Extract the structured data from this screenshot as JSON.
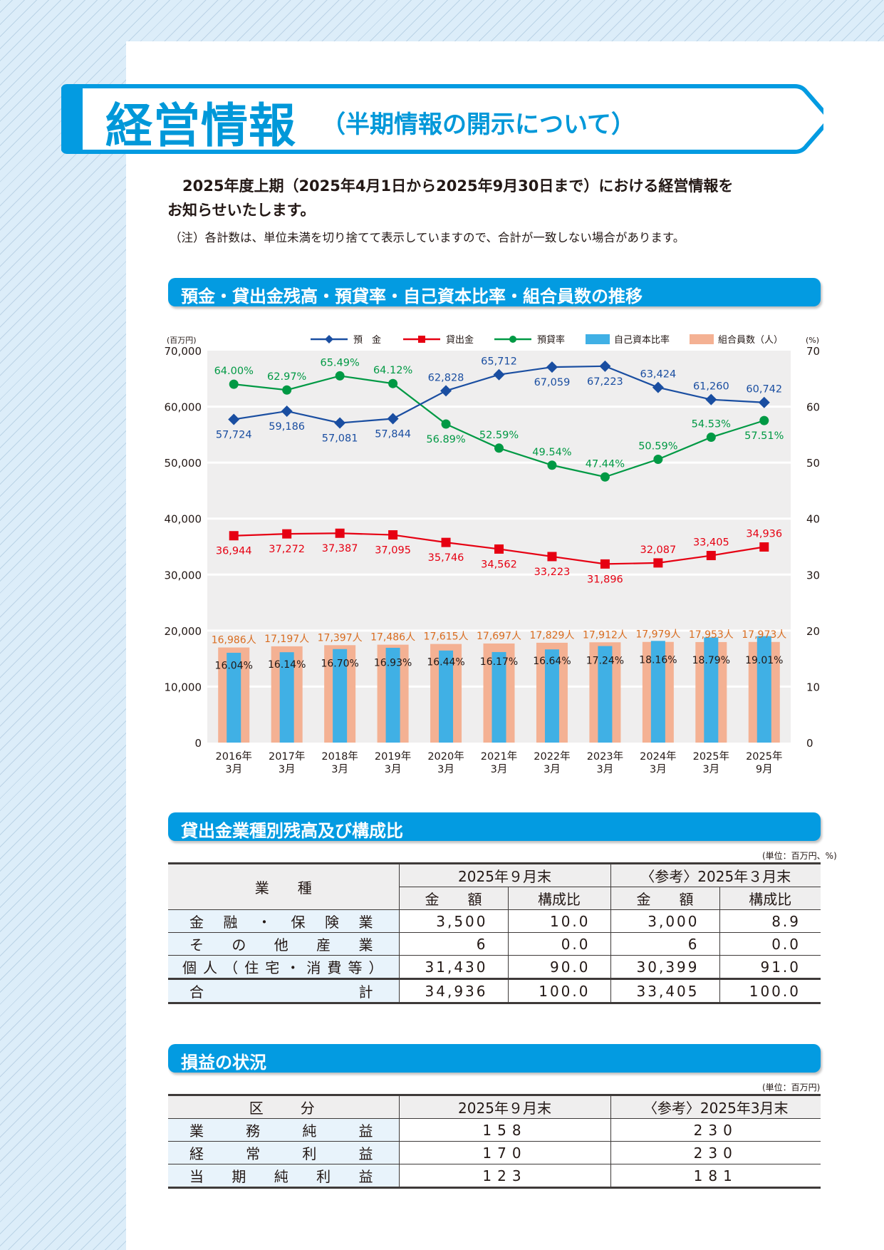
{
  "header": {
    "title": "経営情報",
    "subtitle": "（半期情報の開示について）"
  },
  "intro": {
    "line1": "2025年度上期（2025年4月1日から2025年9月30日まで）における経営情報を",
    "line2": "お知らせいたします。",
    "note": "（注）各計数は、単位未満を切り捨てて表示していますので、合計が一致しない場合があります。"
  },
  "colors": {
    "accent": "#039be1",
    "deposit": "#1a4ea1",
    "loan": "#e60012",
    "ratio": "#009944",
    "capital_ratio": "#40b0e5",
    "members": "#f4b193",
    "members_label": "#d96c1f",
    "plot_bg": "#efeeee"
  },
  "sections": {
    "chart": "預金・貸出金残高・預貸率・自己資本比率・組合員数の推移",
    "loans": "貸出金業種別残高及び構成比",
    "pl": "損益の状況"
  },
  "chart_data": {
    "type": "bar+line",
    "title": "預金・貸出金残高・預貸率・自己資本比率・組合員数の推移",
    "categories": [
      [
        "2016年",
        "3月"
      ],
      [
        "2017年",
        "3月"
      ],
      [
        "2018年",
        "3月"
      ],
      [
        "2019年",
        "3月"
      ],
      [
        "2020年",
        "3月"
      ],
      [
        "2021年",
        "3月"
      ],
      [
        "2022年",
        "3月"
      ],
      [
        "2023年",
        "3月"
      ],
      [
        "2024年",
        "3月"
      ],
      [
        "2025年",
        "3月"
      ],
      [
        "2025年",
        "9月"
      ]
    ],
    "left_axis": {
      "label": "(百万円)",
      "min": 0,
      "max": 70000,
      "ticks": [
        0,
        10000,
        20000,
        30000,
        40000,
        50000,
        60000,
        70000
      ],
      "tick_labels": [
        "0",
        "10,000",
        "20,000",
        "30,000",
        "40,000",
        "50,000",
        "60,000",
        "70,000"
      ]
    },
    "right_axis": {
      "label": "(%)",
      "min": 0,
      "max": 70,
      "ticks": [
        0,
        10,
        20,
        30,
        40,
        50,
        60,
        70
      ],
      "tick_labels": [
        "0",
        "10",
        "20",
        "30",
        "40",
        "50",
        "60",
        "70"
      ]
    },
    "grid": true,
    "legend_position": "top",
    "series": [
      {
        "name": "預　金",
        "type": "line",
        "axis": "left",
        "marker": "diamond",
        "values": [
          57724,
          59186,
          57081,
          57844,
          62828,
          65712,
          67059,
          67223,
          63424,
          61260,
          60742
        ],
        "labels": [
          "57,724",
          "59,186",
          "57,081",
          "57,844",
          "62,828",
          "65,712",
          "67,059",
          "67,223",
          "63,424",
          "61,260",
          "60,742"
        ],
        "label_pos": [
          "below",
          "below",
          "below",
          "below",
          "above",
          "above",
          "below",
          "below",
          "above",
          "above",
          "above"
        ]
      },
      {
        "name": "貸出金",
        "type": "line",
        "axis": "left",
        "marker": "square",
        "values": [
          36944,
          37272,
          37387,
          37095,
          35746,
          34562,
          33223,
          31896,
          32087,
          33405,
          34936
        ],
        "labels": [
          "36,944",
          "37,272",
          "37,387",
          "37,095",
          "35,746",
          "34,562",
          "33,223",
          "31,896",
          "32,087",
          "33,405",
          "34,936"
        ],
        "label_pos": [
          "below",
          "below",
          "below",
          "below",
          "below",
          "below",
          "below",
          "below",
          "above",
          "above",
          "above"
        ]
      },
      {
        "name": "預貸率",
        "type": "line",
        "axis": "right",
        "marker": "circle",
        "values": [
          64.0,
          62.97,
          65.49,
          64.12,
          56.89,
          52.59,
          49.54,
          47.44,
          50.59,
          54.53,
          57.51
        ],
        "labels": [
          "64.00%",
          "62.97%",
          "65.49%",
          "64.12%",
          "56.89%",
          "52.59%",
          "49.54%",
          "47.44%",
          "50.59%",
          "54.53%",
          "57.51%"
        ],
        "label_pos": [
          "above",
          "above",
          "above",
          "above",
          "below",
          "above",
          "above",
          "above",
          "above",
          "above",
          "below"
        ]
      },
      {
        "name": "自己資本比率",
        "type": "bar",
        "axis": "right",
        "values": [
          16.04,
          16.14,
          16.7,
          16.93,
          16.44,
          16.17,
          16.64,
          17.24,
          18.16,
          18.79,
          19.01
        ],
        "labels": [
          "16.04%",
          "16.14%",
          "16.70%",
          "16.93%",
          "16.44%",
          "16.17%",
          "16.64%",
          "17.24%",
          "18.16%",
          "18.79%",
          "19.01%"
        ]
      },
      {
        "name": "組合員数（人）",
        "type": "bar",
        "axis": "left",
        "values": [
          16986,
          17197,
          17397,
          17486,
          17615,
          17697,
          17829,
          17912,
          17979,
          17953,
          17973
        ],
        "labels": [
          "16,986人",
          "17,197人",
          "17,397人",
          "17,486人",
          "17,615人",
          "17,697人",
          "17,829人",
          "17,912人",
          "17,979人",
          "17,953人",
          "17,973人"
        ]
      }
    ]
  },
  "loans_table": {
    "unit": "(単位：百万円、%)",
    "col_group_1": "2025年９月末",
    "col_group_2": "〈参考〉2025年３月末",
    "header_industry": "業　　種",
    "header_amount": "金　　額",
    "header_ratio": "構成比",
    "rows": [
      {
        "label": "金融・保険業",
        "amount_sep": "3,500",
        "ratio_sep": "10.0",
        "amount_mar": "3,000",
        "ratio_mar": "8.9"
      },
      {
        "label": "その他産業",
        "amount_sep": "6",
        "ratio_sep": "0.0",
        "amount_mar": "6",
        "ratio_mar": "0.0"
      },
      {
        "label": "個人（住宅・消費等）",
        "amount_sep": "31,430",
        "ratio_sep": "90.0",
        "amount_mar": "30,399",
        "ratio_mar": "91.0"
      },
      {
        "label": "合　　　　計",
        "amount_sep": "34,936",
        "ratio_sep": "100.0",
        "amount_mar": "33,405",
        "ratio_mar": "100.0"
      }
    ]
  },
  "pl_table": {
    "unit": "(単位：百万円)",
    "header_category": "区　　分",
    "header_sep": "2025年９月末",
    "header_mar": "〈参考〉2025年3月末",
    "rows": [
      {
        "label": "業務純益",
        "sep": "158",
        "mar": "230"
      },
      {
        "label": "経常利益",
        "sep": "170",
        "mar": "230"
      },
      {
        "label": "当期純利益",
        "sep": "123",
        "mar": "181"
      }
    ]
  }
}
